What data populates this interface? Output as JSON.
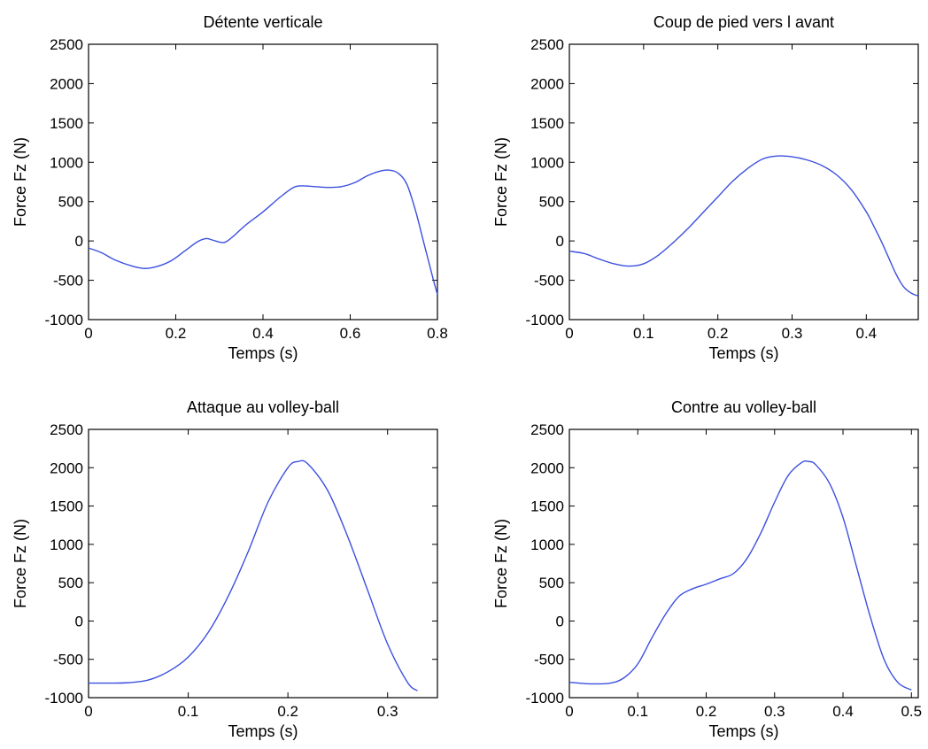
{
  "chart_data": [
    {
      "type": "line",
      "title": "Détente verticale",
      "xlabel": "Temps (s)",
      "ylabel": "Force Fz (N)",
      "xlim": [
        0,
        0.8
      ],
      "ylim": [
        -1000,
        2500
      ],
      "xticks": [
        0,
        0.2,
        0.4,
        0.6,
        0.8
      ],
      "xtick_labels": [
        "0",
        "0.2",
        "0.4",
        "0.6",
        "0.8"
      ],
      "yticks": [
        -1000,
        -500,
        0,
        500,
        1000,
        1500,
        2000,
        2500
      ],
      "ytick_labels": [
        "-1000",
        "-500",
        "0",
        "500",
        "1000",
        "1500",
        "2000",
        "2500"
      ],
      "grid": false,
      "series": [
        {
          "color": "#3c4fe0",
          "x": [
            0,
            0.03,
            0.06,
            0.1,
            0.13,
            0.16,
            0.19,
            0.22,
            0.25,
            0.27,
            0.285,
            0.31,
            0.33,
            0.36,
            0.4,
            0.44,
            0.47,
            0.49,
            0.52,
            0.55,
            0.58,
            0.61,
            0.64,
            0.67,
            0.69,
            0.71,
            0.73,
            0.75,
            0.77,
            0.79,
            0.8
          ],
          "y": [
            -90,
            -150,
            -240,
            -320,
            -350,
            -320,
            -250,
            -130,
            -10,
            30,
            10,
            -20,
            50,
            200,
            370,
            560,
            680,
            700,
            690,
            680,
            690,
            740,
            830,
            890,
            900,
            860,
            720,
            380,
            -50,
            -480,
            -680
          ]
        }
      ]
    },
    {
      "type": "line",
      "title": "Coup de pied vers l avant",
      "xlabel": "Temps (s)",
      "ylabel": "Force Fz (N)",
      "xlim": [
        0,
        0.47
      ],
      "ylim": [
        -1000,
        2500
      ],
      "xticks": [
        0,
        0.1,
        0.2,
        0.3,
        0.4
      ],
      "xtick_labels": [
        "0",
        "0.1",
        "0.2",
        "0.3",
        "0.4"
      ],
      "yticks": [
        -1000,
        -500,
        0,
        500,
        1000,
        1500,
        2000,
        2500
      ],
      "ytick_labels": [
        "-1000",
        "-500",
        "0",
        "500",
        "1000",
        "1500",
        "2000",
        "2500"
      ],
      "grid": false,
      "series": [
        {
          "color": "#3c4fe0",
          "x": [
            0,
            0.02,
            0.04,
            0.06,
            0.08,
            0.1,
            0.12,
            0.14,
            0.16,
            0.18,
            0.2,
            0.22,
            0.24,
            0.26,
            0.28,
            0.3,
            0.32,
            0.34,
            0.36,
            0.38,
            0.4,
            0.41,
            0.42,
            0.43,
            0.44,
            0.45,
            0.46,
            0.47
          ],
          "y": [
            -130,
            -160,
            -230,
            -290,
            -320,
            -290,
            -180,
            -20,
            160,
            360,
            560,
            760,
            920,
            1040,
            1080,
            1070,
            1030,
            960,
            840,
            650,
            370,
            190,
            0,
            -210,
            -420,
            -580,
            -660,
            -700
          ]
        }
      ]
    },
    {
      "type": "line",
      "title": "Attaque au volley-ball",
      "xlabel": "Temps (s)",
      "ylabel": "Force Fz (N)",
      "xlim": [
        0,
        0.35
      ],
      "ylim": [
        -1000,
        2500
      ],
      "xticks": [
        0,
        0.1,
        0.2,
        0.3
      ],
      "xtick_labels": [
        "0",
        "0.1",
        "0.2",
        "0.3"
      ],
      "yticks": [
        -1000,
        -500,
        0,
        500,
        1000,
        1500,
        2000,
        2500
      ],
      "ytick_labels": [
        "-1000",
        "-500",
        "0",
        "500",
        "1000",
        "1500",
        "2000",
        "2500"
      ],
      "grid": false,
      "series": [
        {
          "color": "#3c4fe0",
          "x": [
            0,
            0.02,
            0.04,
            0.06,
            0.08,
            0.1,
            0.12,
            0.14,
            0.16,
            0.18,
            0.2,
            0.21,
            0.22,
            0.24,
            0.26,
            0.28,
            0.3,
            0.32,
            0.33
          ],
          "y": [
            -810,
            -810,
            -805,
            -770,
            -660,
            -470,
            -150,
            320,
            900,
            1550,
            2000,
            2080,
            2050,
            1700,
            1100,
            400,
            -300,
            -800,
            -910
          ]
        }
      ]
    },
    {
      "type": "line",
      "title": "Contre au volley-ball",
      "xlabel": "Temps (s)",
      "ylabel": "Force Fz (N)",
      "xlim": [
        0,
        0.51
      ],
      "ylim": [
        -1000,
        2500
      ],
      "xticks": [
        0,
        0.1,
        0.2,
        0.3,
        0.4,
        0.5
      ],
      "xtick_labels": [
        "0",
        "0.1",
        "0.2",
        "0.3",
        "0.4",
        "0.5"
      ],
      "yticks": [
        -1000,
        -500,
        0,
        500,
        1000,
        1500,
        2000,
        2500
      ],
      "ytick_labels": [
        "-1000",
        "-500",
        "0",
        "500",
        "1000",
        "1500",
        "2000",
        "2500"
      ],
      "grid": false,
      "series": [
        {
          "color": "#3c4fe0",
          "x": [
            0,
            0.03,
            0.06,
            0.08,
            0.1,
            0.12,
            0.14,
            0.16,
            0.18,
            0.2,
            0.22,
            0.24,
            0.26,
            0.28,
            0.3,
            0.32,
            0.34,
            0.35,
            0.36,
            0.38,
            0.4,
            0.42,
            0.44,
            0.46,
            0.48,
            0.5
          ],
          "y": [
            -800,
            -820,
            -810,
            -740,
            -560,
            -230,
            80,
            320,
            420,
            480,
            550,
            620,
            820,
            1150,
            1550,
            1900,
            2070,
            2080,
            2040,
            1800,
            1350,
            700,
            50,
            -500,
            -800,
            -900
          ]
        }
      ]
    }
  ]
}
